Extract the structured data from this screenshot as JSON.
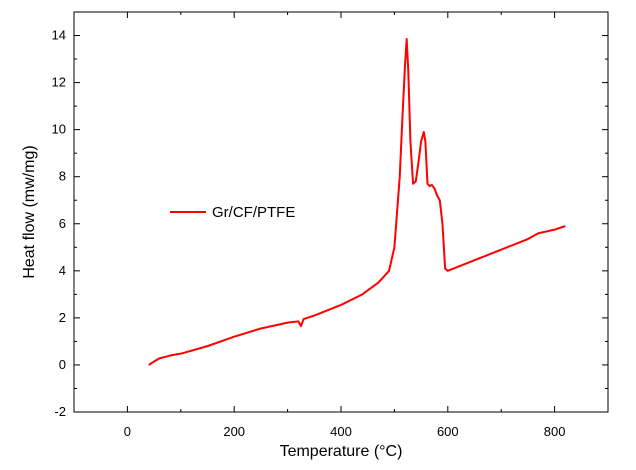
{
  "chart_data": {
    "type": "line",
    "xlabel": "Temperature (°C)",
    "ylabel": "Heat flow (mw/mg)",
    "xlim": [
      -100,
      900
    ],
    "ylim": [
      -2,
      15
    ],
    "x_ticks": [
      0,
      200,
      400,
      600,
      800
    ],
    "y_ticks": [
      -2,
      0,
      2,
      4,
      6,
      8,
      10,
      12,
      14
    ],
    "x_tick_labels": [
      "0",
      "200",
      "400",
      "600",
      "800"
    ],
    "y_tick_labels": [
      "-2",
      "0",
      "2",
      "4",
      "6",
      "8",
      "10",
      "12",
      "14"
    ],
    "grid": false,
    "legend_position": "middle-left",
    "series": [
      {
        "name": "Gr/CF/PTFE",
        "color": "#ff0000",
        "x": [
          40,
          50,
          60,
          80,
          100,
          150,
          200,
          250,
          300,
          320,
          325,
          330,
          350,
          400,
          440,
          470,
          490,
          500,
          505,
          510,
          515,
          520,
          523,
          526,
          530,
          535,
          540,
          545,
          550,
          555,
          558,
          562,
          566,
          570,
          575,
          580,
          585,
          590,
          595,
          600,
          650,
          700,
          750,
          770,
          800,
          820
        ],
        "y": [
          0.0,
          0.15,
          0.28,
          0.4,
          0.48,
          0.8,
          1.2,
          1.55,
          1.8,
          1.85,
          1.65,
          1.95,
          2.1,
          2.55,
          3.0,
          3.5,
          4.0,
          5.0,
          6.5,
          8.0,
          10.5,
          12.8,
          13.85,
          12.5,
          9.5,
          7.7,
          7.8,
          8.6,
          9.5,
          9.9,
          9.5,
          7.7,
          7.6,
          7.65,
          7.5,
          7.2,
          7.0,
          6.0,
          4.1,
          4.0,
          4.45,
          4.9,
          5.35,
          5.6,
          5.75,
          5.9
        ]
      }
    ]
  }
}
